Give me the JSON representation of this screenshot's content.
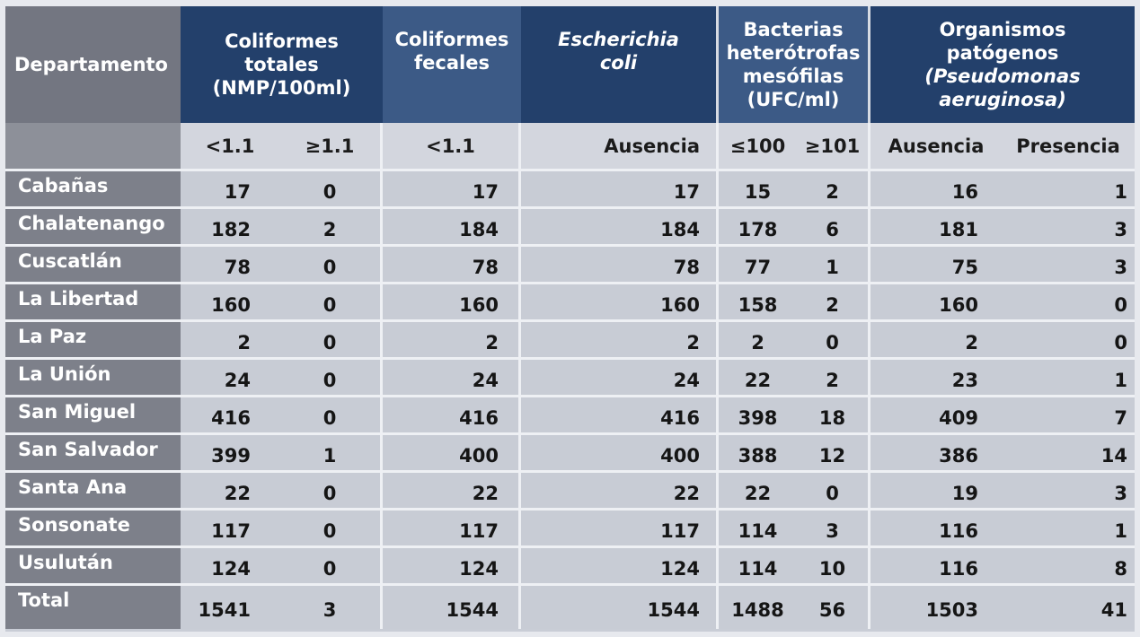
{
  "headers": {
    "departamento": "Departamento",
    "coliformes_totales": [
      "Coliformes",
      "totales",
      "(NMP/100ml)"
    ],
    "coliformes_fecales": [
      "Coliformes",
      "fecales"
    ],
    "escherichia": [
      "Escherichia",
      "coli"
    ],
    "bacterias": [
      "Bacterias",
      "heterótrofas",
      "mesófilas",
      "(UFC/ml)"
    ],
    "organismos": [
      "Organismos",
      "patógenos",
      "(Pseudomonas",
      "aeruginosa)"
    ]
  },
  "subheaders": [
    "<1.1",
    "≥1.1",
    "<1.1",
    "Ausencia",
    "≤100",
    "≥101",
    "Ausencia",
    "Presencia"
  ],
  "rows": [
    {
      "dep": "Cabañas",
      "v": [
        "17",
        "0",
        "17",
        "17",
        "15",
        "2",
        "16",
        "1"
      ]
    },
    {
      "dep": "Chalatenango",
      "v": [
        "182",
        "2",
        "184",
        "184",
        "178",
        "6",
        "181",
        "3"
      ]
    },
    {
      "dep": "Cuscatlán",
      "v": [
        "78",
        "0",
        "78",
        "78",
        "77",
        "1",
        "75",
        "3"
      ]
    },
    {
      "dep": "La Libertad",
      "v": [
        "160",
        "0",
        "160",
        "160",
        "158",
        "2",
        "160",
        "0"
      ]
    },
    {
      "dep": "La Paz",
      "v": [
        "2",
        "0",
        "2",
        "2",
        "2",
        "0",
        "2",
        "0"
      ]
    },
    {
      "dep": "La Unión",
      "v": [
        "24",
        "0",
        "24",
        "24",
        "22",
        "2",
        "23",
        "1"
      ]
    },
    {
      "dep": "San Miguel",
      "v": [
        "416",
        "0",
        "416",
        "416",
        "398",
        "18",
        "409",
        "7"
      ]
    },
    {
      "dep": "San Salvador",
      "v": [
        "399",
        "1",
        "400",
        "400",
        "388",
        "12",
        "386",
        "14"
      ]
    },
    {
      "dep": "Santa Ana",
      "v": [
        "22",
        "0",
        "22",
        "22",
        "22",
        "0",
        "19",
        "3"
      ]
    },
    {
      "dep": "Sonsonate",
      "v": [
        "117",
        "0",
        "117",
        "117",
        "114",
        "3",
        "116",
        "1"
      ]
    },
    {
      "dep": "Usulután",
      "v": [
        "124",
        "0",
        "124",
        "124",
        "114",
        "10",
        "116",
        "8"
      ]
    },
    {
      "dep": "Total",
      "v": [
        "1541",
        "3",
        "1544",
        "1544",
        "1488",
        "56",
        "1503",
        "41"
      ]
    }
  ]
}
